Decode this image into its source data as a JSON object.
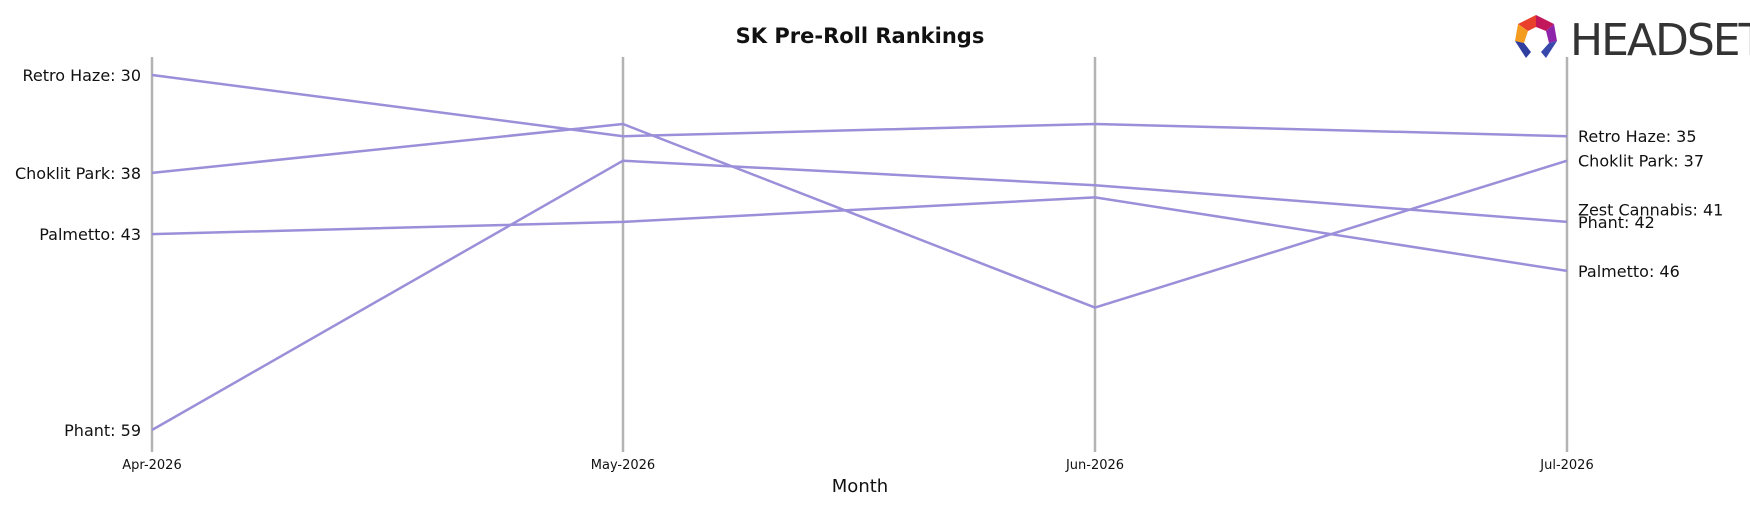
{
  "chart_data": {
    "type": "line",
    "title": "SK Pre-Roll Rankings",
    "xlabel": "Month",
    "ylabel": "",
    "categories": [
      "Apr-2026",
      "May-2026",
      "Jun-2026",
      "Jul-2026"
    ],
    "y_axis": "rank (inverted, lower rank at top)",
    "ylim": [
      28,
      60
    ],
    "grid": "vertical lines at each month",
    "line_color": "#9b8fd9",
    "series": [
      {
        "name": "Retro Haze",
        "values": [
          30,
          35,
          34,
          35
        ]
      },
      {
        "name": "Choklit Park",
        "values": [
          38,
          34,
          49,
          37
        ]
      },
      {
        "name": "Palmetto",
        "values": [
          43,
          42,
          40,
          46
        ]
      },
      {
        "name": "Phant",
        "values": [
          59,
          37,
          39,
          42
        ]
      },
      {
        "name": "Zest Cannabis",
        "values": [
          null,
          null,
          null,
          41
        ]
      }
    ],
    "left_labels": [
      {
        "series": "Retro Haze",
        "text": "Retro Haze: 30",
        "rank": 30
      },
      {
        "series": "Choklit Park",
        "text": "Choklit Park: 38",
        "rank": 38
      },
      {
        "series": "Palmetto",
        "text": "Palmetto: 43",
        "rank": 43
      },
      {
        "series": "Phant",
        "text": "Phant: 59",
        "rank": 59
      }
    ],
    "right_labels": [
      {
        "series": "Retro Haze",
        "text": "Retro Haze: 35",
        "rank": 35
      },
      {
        "series": "Choklit Park",
        "text": "Choklit Park: 37",
        "rank": 37
      },
      {
        "series": "Zest Cannabis",
        "text": "Zest Cannabis: 41",
        "rank": 41,
        "color": "#cc0000"
      },
      {
        "series": "Phant",
        "text": "Phant: 42",
        "rank": 42
      },
      {
        "series": "Palmetto",
        "text": "Palmetto: 46",
        "rank": 46
      }
    ]
  },
  "logo": {
    "text": "HEADSET",
    "colors": [
      "#e8402a",
      "#f39c1f",
      "#c2185b",
      "#8e24aa",
      "#303f9f",
      "#3949ab"
    ]
  }
}
